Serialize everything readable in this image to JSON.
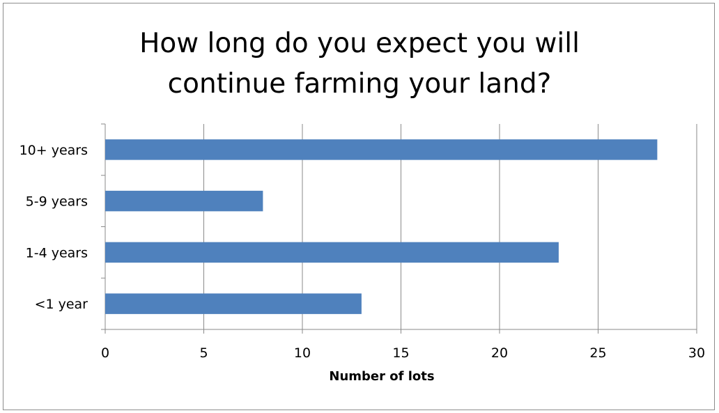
{
  "chart_data": {
    "type": "bar",
    "orientation": "horizontal",
    "title": "How long do you expect you will\ncontinue farming your land?",
    "categories": [
      "10+ years",
      "5-9 years",
      "1-4 years",
      "<1 year"
    ],
    "values": [
      28,
      8,
      23,
      13
    ],
    "xlabel": "Number of lots",
    "ylabel": "",
    "xlim": [
      0,
      30
    ],
    "xticks": [
      0,
      5,
      10,
      15,
      20,
      25,
      30
    ],
    "xtick_labels": [
      "0",
      "5",
      "10",
      "15",
      "20",
      "25",
      "30"
    ],
    "grid": "vertical",
    "legend": "none",
    "bar_color": "#4F81BD"
  }
}
